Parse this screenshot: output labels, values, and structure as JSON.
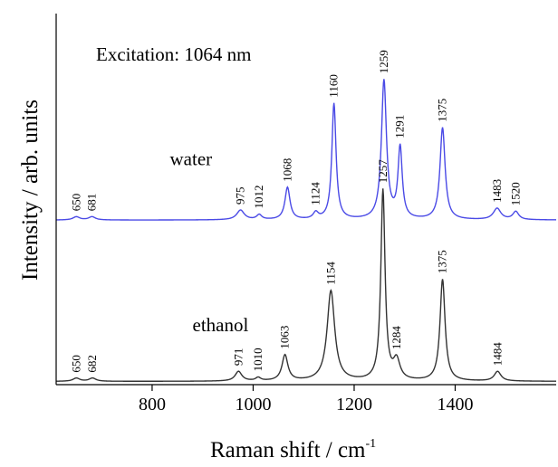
{
  "chart_data": {
    "type": "line",
    "title": "",
    "annotation": "Excitation: 1064 nm",
    "xlabel": "Raman shift / cm",
    "xlabel_superscript": "-1",
    "ylabel": "Intensity / arb. units",
    "xlim": [
      610,
      1600
    ],
    "xticks": [
      800,
      1000,
      1200,
      1400
    ],
    "xtick_labels": [
      "800",
      "1000",
      "1200",
      "1400"
    ],
    "yticks_shown": false,
    "ylim": [
      0,
      2.3
    ],
    "grid": false,
    "series": [
      {
        "name": "water",
        "color": "#4a4ae6",
        "baseline": 1.02,
        "peaks": [
          {
            "x": 650,
            "h": 0.02,
            "w": 8,
            "label": "650"
          },
          {
            "x": 681,
            "h": 0.02,
            "w": 8,
            "label": "681"
          },
          {
            "x": 975,
            "h": 0.06,
            "w": 9,
            "label": "975"
          },
          {
            "x": 1012,
            "h": 0.03,
            "w": 6,
            "label": "1012"
          },
          {
            "x": 1068,
            "h": 0.2,
            "w": 6,
            "label": "1068"
          },
          {
            "x": 1124,
            "h": 0.04,
            "w": 6,
            "label": "1124"
          },
          {
            "x": 1160,
            "h": 0.72,
            "w": 5,
            "label": "1160"
          },
          {
            "x": 1259,
            "h": 0.86,
            "w": 6,
            "label": "1259"
          },
          {
            "x": 1291,
            "h": 0.44,
            "w": 5,
            "label": "1291"
          },
          {
            "x": 1375,
            "h": 0.57,
            "w": 6,
            "label": "1375"
          },
          {
            "x": 1483,
            "h": 0.07,
            "w": 9,
            "label": "1483"
          },
          {
            "x": 1520,
            "h": 0.05,
            "w": 7,
            "label": "1520"
          }
        ]
      },
      {
        "name": "ethanol",
        "color": "#333333",
        "baseline": 0.02,
        "peaks": [
          {
            "x": 650,
            "h": 0.02,
            "w": 8,
            "label": "650"
          },
          {
            "x": 682,
            "h": 0.02,
            "w": 8,
            "label": "682"
          },
          {
            "x": 971,
            "h": 0.06,
            "w": 8,
            "label": "971"
          },
          {
            "x": 1010,
            "h": 0.02,
            "w": 6,
            "label": "1010"
          },
          {
            "x": 1063,
            "h": 0.16,
            "w": 7,
            "label": "1063"
          },
          {
            "x": 1154,
            "h": 0.56,
            "w": 9,
            "label": "1154"
          },
          {
            "x": 1257,
            "h": 1.18,
            "w": 5,
            "label": "1257"
          },
          {
            "x": 1284,
            "h": 0.12,
            "w": 8,
            "label": "1284"
          },
          {
            "x": 1375,
            "h": 0.63,
            "w": 6,
            "label": "1375"
          },
          {
            "x": 1484,
            "h": 0.06,
            "w": 8,
            "label": "1484"
          }
        ]
      }
    ]
  }
}
